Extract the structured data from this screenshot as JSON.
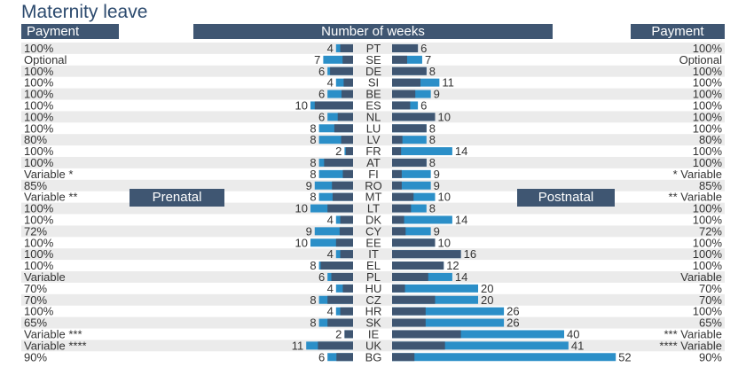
{
  "title": "Maternity leave",
  "headers": {
    "payment_left": "Payment",
    "weeks": "Number of weeks",
    "payment_right": "Payment"
  },
  "tags": {
    "prenatal": "Prenatal",
    "postnatal": "Postnatal"
  },
  "colors": {
    "dark": "#3f5672",
    "light": "#2b8fc8",
    "stripe": "#ebebeb",
    "text": "#333333"
  },
  "chart_data": {
    "type": "bar",
    "layout": "butterfly",
    "title": "Maternity leave",
    "categories": [
      "PT",
      "SE",
      "DE",
      "SI",
      "BE",
      "ES",
      "NL",
      "LU",
      "LV",
      "FR",
      "AT",
      "FI",
      "RO",
      "MT",
      "LT",
      "DK",
      "CY",
      "EE",
      "IT",
      "EL",
      "PL",
      "HU",
      "CZ",
      "HR",
      "SK",
      "IE",
      "UK",
      "BG"
    ],
    "series": [
      {
        "name": "Prenatal",
        "values": [
          4,
          7,
          6,
          4,
          6,
          10,
          6,
          8,
          8,
          2,
          8,
          8,
          9,
          8,
          10,
          4,
          9,
          10,
          4,
          8,
          6,
          4,
          8,
          4,
          8,
          2,
          11,
          6
        ]
      },
      {
        "name": "Postnatal",
        "values": [
          6,
          7,
          8,
          11,
          9,
          6,
          10,
          8,
          8,
          14,
          8,
          9,
          9,
          10,
          8,
          14,
          9,
          10,
          16,
          12,
          14,
          20,
          20,
          26,
          26,
          40,
          41,
          52
        ]
      }
    ],
    "payment_left": [
      "100%",
      "Optional",
      "100%",
      "100%",
      "100%",
      "100%",
      "100%",
      "100%",
      "80%",
      "100%",
      "100%",
      "Variable *",
      "85%",
      "Variable **",
      "100%",
      "100%",
      "72%",
      "100%",
      "100%",
      "100%",
      "Variable",
      "70%",
      "70%",
      "100%",
      "65%",
      "Variable ***",
      "Variable ****",
      "90%"
    ],
    "payment_right": [
      "100%",
      "Optional",
      "100%",
      "100%",
      "100%",
      "100%",
      "100%",
      "100%",
      "80%",
      "100%",
      "100%",
      "* Variable",
      "85%",
      "** Variable",
      "100%",
      "100%",
      "72%",
      "100%",
      "100%",
      "100%",
      "Variable",
      "70%",
      "70%",
      "100%",
      "65%",
      "*** Variable",
      "**** Variable",
      "90%"
    ],
    "prenatal_dark_share": [
      0.75,
      0.35,
      0.9,
      0.55,
      0.45,
      0.9,
      0.6,
      0.55,
      0.35,
      0.85,
      0.85,
      0.3,
      0.55,
      0.6,
      0.6,
      0.75,
      0.35,
      0.4,
      0.75,
      0.95,
      0.85,
      0.6,
      0.75,
      0.75,
      0.75,
      1,
      0.75,
      0.65
    ],
    "postnatal_dark_share": [
      1,
      0.5,
      1,
      0.6,
      0.6,
      0.7,
      1,
      1,
      0.3,
      0.15,
      1,
      0.25,
      0.25,
      0.5,
      0.55,
      0.2,
      0.35,
      1,
      1,
      1,
      0.6,
      0.15,
      0.5,
      0.3,
      0.3,
      0.4,
      0.3,
      0.1
    ]
  }
}
